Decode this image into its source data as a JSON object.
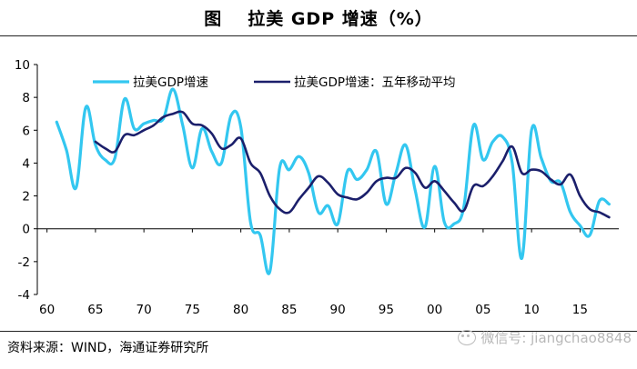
{
  "figure": {
    "label": "图",
    "title": "拉美 GDP 增速（%）"
  },
  "source_note": "资料来源：WIND，海通证券研究所",
  "watermark": "微信号: jiangchao8848",
  "colors": {
    "annual": "#33c7f0",
    "ma": "#1b1f6b",
    "axis": "#000000"
  },
  "chart_data": {
    "type": "line",
    "title": "拉美 GDP 增速（%）",
    "xlabel": "",
    "ylabel": "",
    "xlim": [
      1959,
      2019
    ],
    "ylim": [
      -4,
      10
    ],
    "yticks": [
      -4,
      -2,
      0,
      2,
      4,
      6,
      8,
      10
    ],
    "xtick_values": [
      1960,
      1965,
      1970,
      1975,
      1980,
      1985,
      1990,
      1995,
      2000,
      2005,
      2010,
      2015
    ],
    "xtick_labels": [
      "60",
      "65",
      "70",
      "75",
      "80",
      "85",
      "90",
      "95",
      "00",
      "05",
      "10",
      "15"
    ],
    "legend_position": "top",
    "series": [
      {
        "name": "拉美GDP增速",
        "x": [
          1961,
          1962,
          1963,
          1964,
          1965,
          1966,
          1967,
          1968,
          1969,
          1970,
          1971,
          1972,
          1973,
          1974,
          1975,
          1976,
          1977,
          1978,
          1979,
          1980,
          1981,
          1982,
          1983,
          1984,
          1985,
          1986,
          1987,
          1988,
          1989,
          1990,
          1991,
          1992,
          1993,
          1994,
          1995,
          1996,
          1997,
          1998,
          1999,
          2000,
          2001,
          2002,
          2003,
          2004,
          2005,
          2006,
          2007,
          2008,
          2009,
          2010,
          2011,
          2012,
          2013,
          2014,
          2015,
          2016,
          2017,
          2018
        ],
        "values": [
          6.5,
          4.8,
          2.5,
          7.4,
          5.1,
          4.2,
          4.3,
          7.9,
          6.1,
          6.4,
          6.6,
          6.7,
          8.5,
          6.3,
          3.7,
          6.1,
          4.7,
          4.0,
          6.9,
          6.2,
          0.4,
          -0.4,
          -2.6,
          3.7,
          3.6,
          4.4,
          3.4,
          1.0,
          1.4,
          0.3,
          3.5,
          3.0,
          3.6,
          4.7,
          1.5,
          3.4,
          5.1,
          2.3,
          0.1,
          3.8,
          0.4,
          0.3,
          1.3,
          6.3,
          4.2,
          5.3,
          5.6,
          4.0,
          -1.8,
          6.0,
          4.3,
          2.9,
          2.8,
          1.0,
          0.2,
          -0.4,
          1.7,
          1.5
        ]
      },
      {
        "name": "拉美GDP增速：五年移动平均",
        "x": [
          1965,
          1966,
          1967,
          1968,
          1969,
          1970,
          1971,
          1972,
          1973,
          1974,
          1975,
          1976,
          1977,
          1978,
          1979,
          1980,
          1981,
          1982,
          1983,
          1984,
          1985,
          1986,
          1987,
          1988,
          1989,
          1990,
          1991,
          1992,
          1993,
          1994,
          1995,
          1996,
          1997,
          1998,
          1999,
          2000,
          2001,
          2002,
          2003,
          2004,
          2005,
          2006,
          2007,
          2008,
          2009,
          2010,
          2011,
          2012,
          2013,
          2014,
          2015,
          2016,
          2017,
          2018
        ],
        "values": [
          5.3,
          4.9,
          4.7,
          5.7,
          5.7,
          6.0,
          6.3,
          6.8,
          7.0,
          7.1,
          6.4,
          6.3,
          5.8,
          4.9,
          5.1,
          5.5,
          4.0,
          3.4,
          2.0,
          1.2,
          1.0,
          1.8,
          2.5,
          3.2,
          2.8,
          2.1,
          1.9,
          1.8,
          2.2,
          2.9,
          3.1,
          3.1,
          3.7,
          3.4,
          2.5,
          2.9,
          2.3,
          1.6,
          1.1,
          2.6,
          2.6,
          3.2,
          4.1,
          5.0,
          3.4,
          3.6,
          3.5,
          3.0,
          2.7,
          3.3,
          2.0,
          1.2,
          1.0,
          0.7
        ]
      }
    ]
  }
}
